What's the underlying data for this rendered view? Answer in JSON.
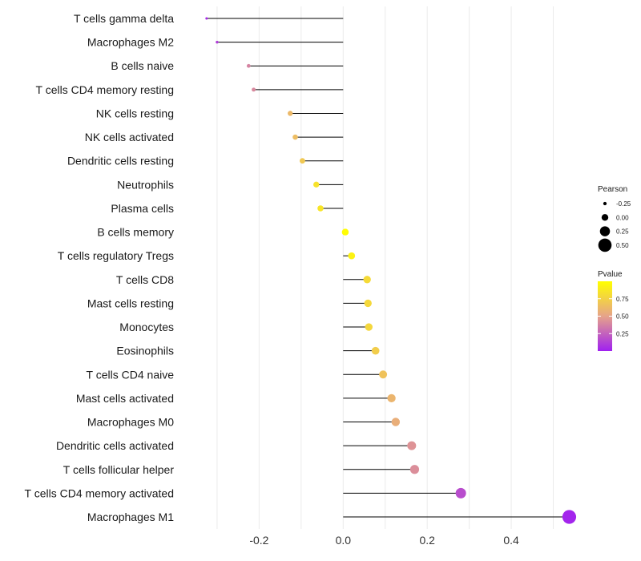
{
  "chart_data": {
    "type": "lollipop",
    "title": "",
    "xlabel": "",
    "ylabel": "",
    "xlim": [
      -0.38,
      0.56
    ],
    "x_ticks": [
      -0.2,
      0.0,
      0.2,
      0.4
    ],
    "x_tick_labels": [
      "-0.2",
      "0.0",
      "0.2",
      "0.4"
    ],
    "grid": "vertical",
    "categories": [
      "T cells gamma delta",
      "Macrophages M2",
      "B cells naive",
      "T cells CD4 memory resting",
      "NK cells resting",
      "NK cells activated",
      "Dendritic cells resting",
      "Neutrophils",
      "Plasma cells",
      "B cells memory",
      "T cells regulatory  Tregs ",
      "T cells CD8",
      "Mast cells resting",
      "Monocytes",
      "Eosinophils",
      "T cells CD4 naive",
      "Mast cells activated",
      "Macrophages M0",
      "Dendritic cells activated",
      "T cells follicular helper",
      "T cells CD4 memory activated",
      "Macrophages M1"
    ],
    "pearson": [
      -0.325,
      -0.3,
      -0.225,
      -0.213,
      -0.126,
      -0.114,
      -0.097,
      -0.064,
      -0.054,
      0.005,
      0.02,
      0.057,
      0.059,
      0.061,
      0.077,
      0.095,
      0.115,
      0.125,
      0.163,
      0.17,
      0.28,
      0.538
    ],
    "pvalue": [
      0.04,
      0.12,
      0.38,
      0.4,
      0.62,
      0.64,
      0.7,
      0.84,
      0.86,
      0.99,
      0.93,
      0.8,
      0.79,
      0.78,
      0.73,
      0.67,
      0.6,
      0.56,
      0.44,
      0.42,
      0.17,
      0.02
    ],
    "legend": {
      "pearson_title": "Pearson",
      "pearson_values": [
        -0.25,
        0.0,
        0.25,
        0.5
      ],
      "pearson_labels": [
        "-0.25",
        "0.00",
        "0.25",
        "0.50"
      ],
      "pvalue_title": "Pvalue",
      "pvalue_ticks": [
        0.75,
        0.5,
        0.25
      ],
      "pvalue_labels": [
        "0.75",
        "0.50",
        "0.25"
      ],
      "pvalue_range": [
        0.0,
        1.0
      ],
      "position": "right"
    },
    "colors": {
      "high": "#FFFF00",
      "mid": "#E6A38A",
      "low": "#A020F0",
      "stem": "#000000",
      "grid": "#EBEBEB"
    }
  }
}
